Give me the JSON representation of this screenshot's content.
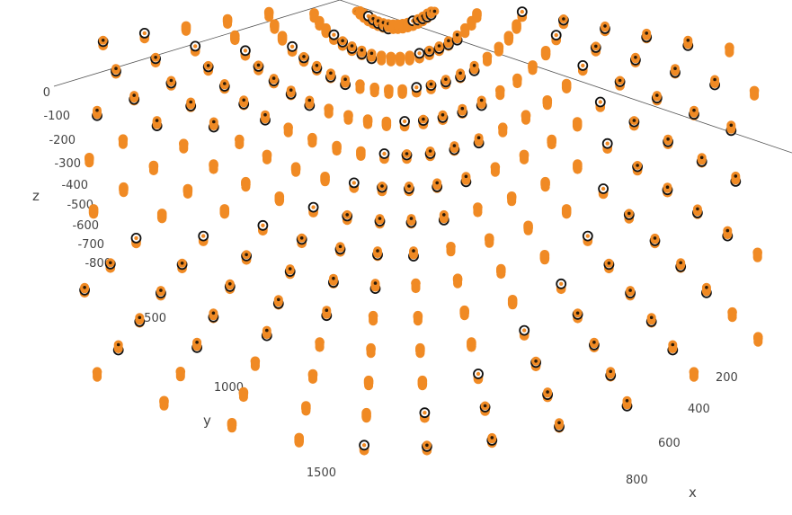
{
  "chart_data": {
    "type": "scatter3d",
    "axes": {
      "x": {
        "title": "x",
        "ticks": [
          "200",
          "400",
          "600",
          "800"
        ]
      },
      "y": {
        "title": "y",
        "ticks": [
          "500",
          "1000",
          "1500"
        ]
      },
      "z": {
        "title": "z",
        "ticks": [
          "0",
          "-100",
          "-200",
          "-300",
          "-400",
          "-500",
          "-600",
          "-700",
          "-800"
        ]
      }
    },
    "grid": false,
    "legend": "none",
    "colors": {
      "orange": "#f08a24",
      "ring": "#111111",
      "center": "#ffffff"
    },
    "series": [
      {
        "marker_styles": [
          "filled-orange",
          "orange-with-dark-center",
          "black-ring-orange-center"
        ],
        "layout": "regular grid of points in x and y, projected in perspective; each point plotted at several depths along z",
        "depth_values": [
          -100,
          -250,
          -400,
          -550,
          -700
        ]
      }
    ]
  }
}
